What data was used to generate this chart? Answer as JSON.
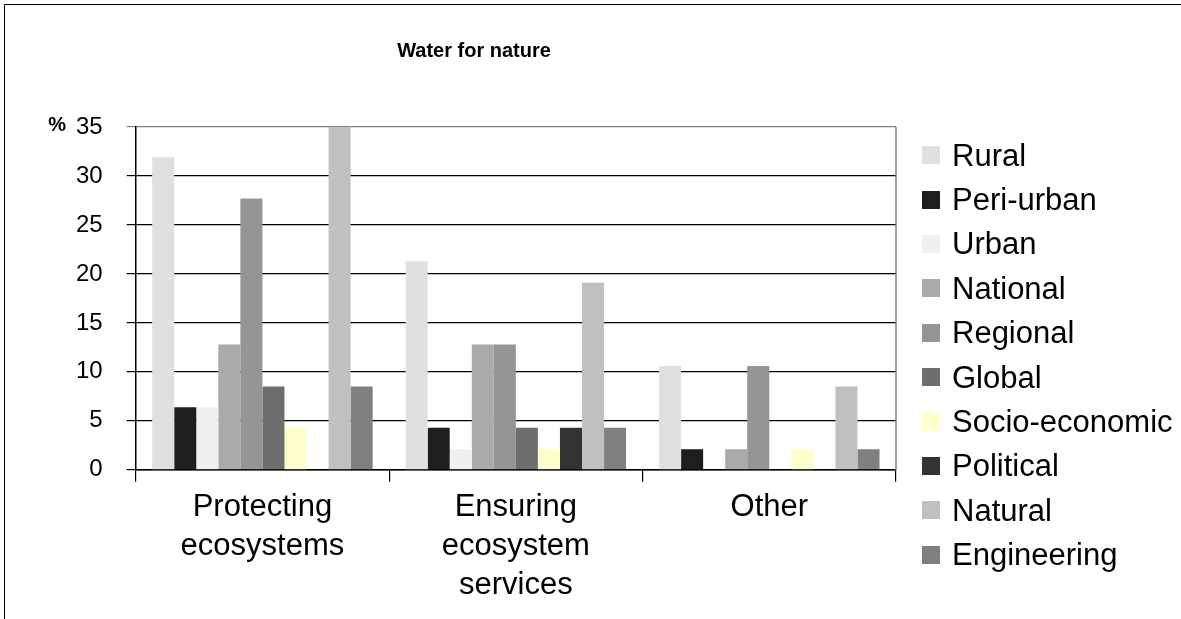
{
  "chart_data": {
    "type": "bar",
    "title": "Water for nature",
    "ylabel": "%",
    "categories": [
      "Protecting ecosystems",
      "Ensuring ecosystem services",
      "Other"
    ],
    "series": [
      {
        "name": "Rural",
        "color": "#e0e0e0",
        "values": [
          31.9,
          21.3,
          10.6
        ]
      },
      {
        "name": "Peri-urban",
        "color": "#1e1e1e",
        "values": [
          6.4,
          4.3,
          2.1
        ]
      },
      {
        "name": "Urban",
        "color": "#f0f0f0",
        "values": [
          6.4,
          2.1,
          0
        ]
      },
      {
        "name": "National",
        "color": "#aaaaaa",
        "values": [
          12.8,
          12.8,
          2.1
        ]
      },
      {
        "name": "Regional",
        "color": "#959595",
        "values": [
          27.7,
          12.8,
          10.6
        ]
      },
      {
        "name": "Global",
        "color": "#6e6e6e",
        "values": [
          8.5,
          4.3,
          0
        ]
      },
      {
        "name": "Socio-economic",
        "color": "#ffffcc",
        "values": [
          4.3,
          2.1,
          2.1
        ]
      },
      {
        "name": "Political",
        "color": "#333333",
        "values": [
          0,
          4.3,
          0
        ]
      },
      {
        "name": "Natural",
        "color": "#c0c0c0",
        "values": [
          35,
          19.1,
          8.5
        ]
      },
      {
        "name": "Engineering",
        "color": "#808080",
        "values": [
          8.5,
          4.3,
          2.1
        ]
      }
    ],
    "ylim": [
      0,
      35
    ],
    "yticks": [
      0,
      5,
      10,
      15,
      20,
      25,
      30,
      35
    ],
    "grid": "y",
    "legend": "right"
  }
}
